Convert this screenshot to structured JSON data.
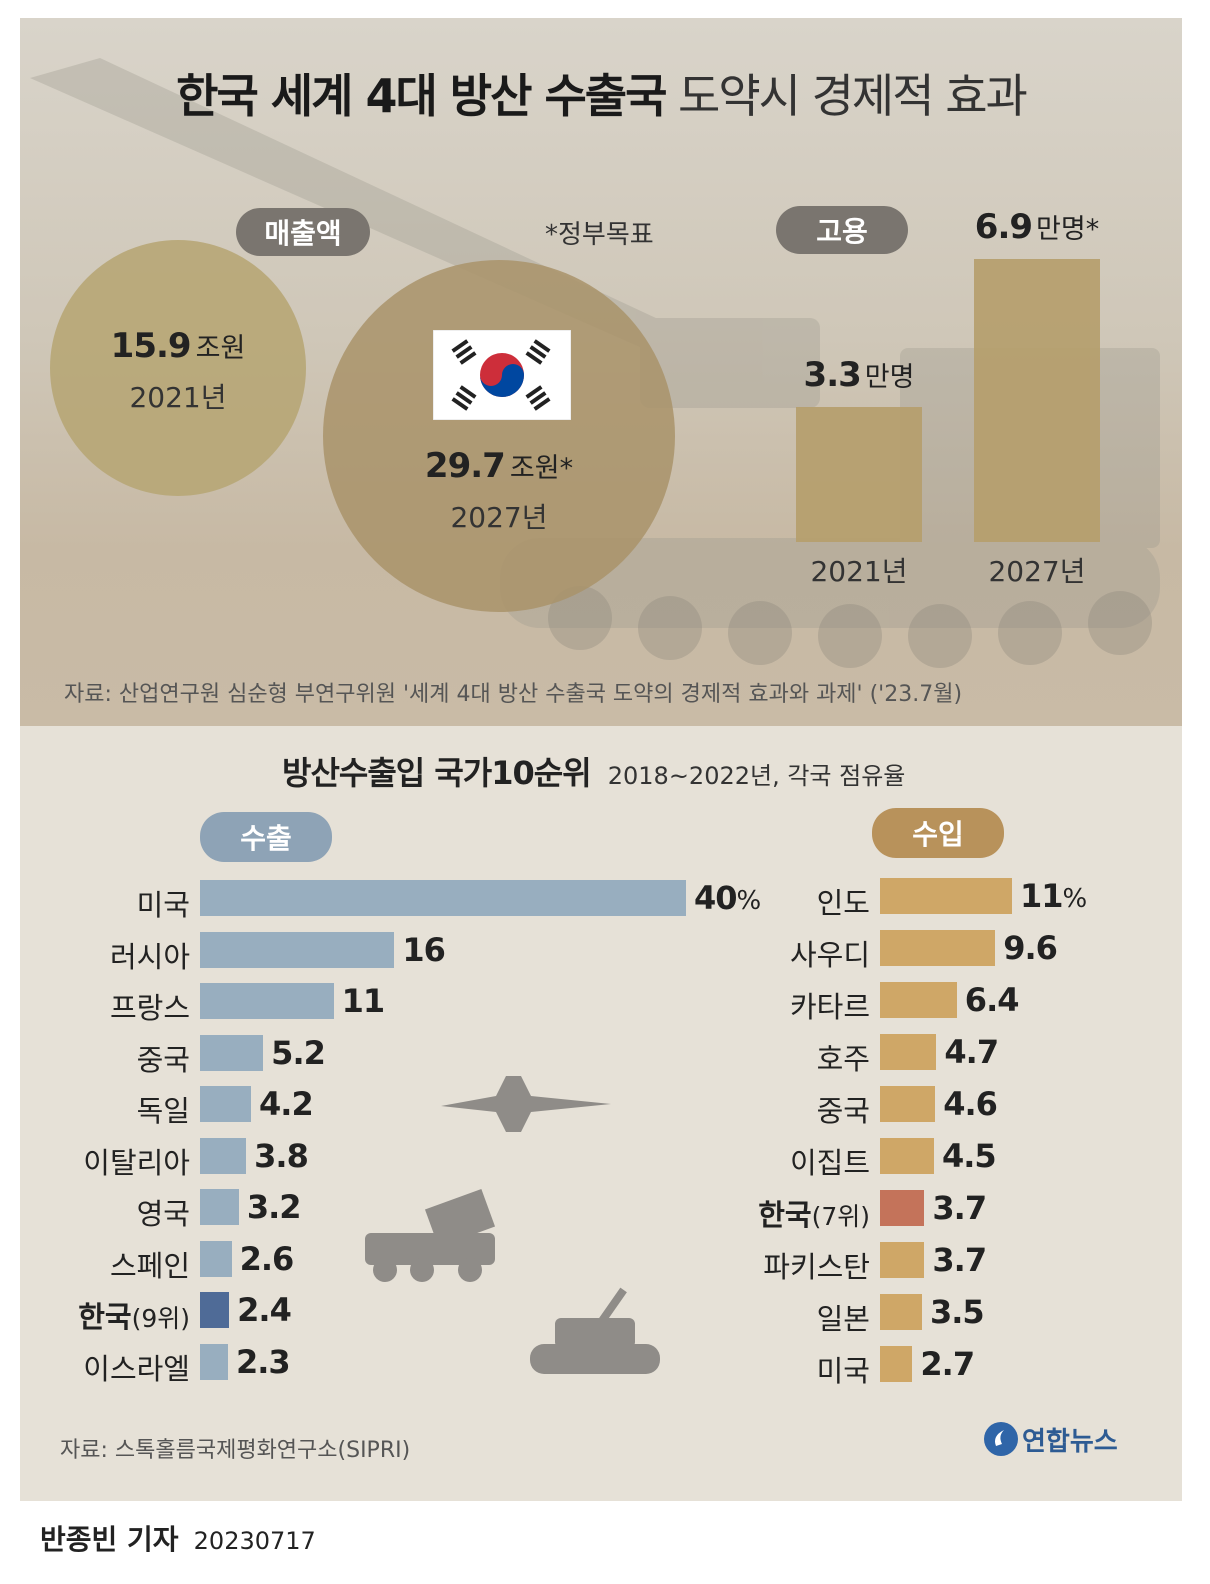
{
  "header": {
    "title_bold": "한국 세계 4대 방산 수출국",
    "title_light": "도약시 경제적 효과"
  },
  "sales": {
    "label": "매출액",
    "note": "*정부목표",
    "items": [
      {
        "amount": "15.9",
        "unit": "조원",
        "year": "2021년"
      },
      {
        "amount": "29.7",
        "unit": "조원*",
        "year": "2027년"
      }
    ]
  },
  "employment": {
    "label": "고용",
    "items": [
      {
        "value": 3.3,
        "amount": "3.3",
        "unit": "만명",
        "year": "2021년"
      },
      {
        "value": 6.9,
        "amount": "6.9",
        "unit": "만명*",
        "year": "2027년"
      }
    ]
  },
  "source_top": "자료: 산업연구원 심순형 부연구위원 '세계 4대 방산 수출국 도약의 경제적 효과와 과제' ('23.7월)",
  "ranking": {
    "title": "방산수출입 국가10순위",
    "subtitle": "2018~2022년, 각국 점유율",
    "export_label": "수출",
    "import_label": "수입"
  },
  "chart_data": [
    {
      "type": "bar",
      "title": "수출",
      "categories": [
        "미국",
        "러시아",
        "프랑스",
        "중국",
        "독일",
        "이탈리아",
        "영국",
        "스페인",
        "한국",
        "이스라엘"
      ],
      "category_suffix": [
        "",
        "",
        "",
        "",
        "",
        "",
        "",
        "",
        "(9위)",
        ""
      ],
      "values": [
        40,
        16,
        11,
        5.2,
        4.2,
        3.8,
        3.2,
        2.6,
        2.4,
        2.3
      ],
      "value_labels": [
        "40%",
        "16",
        "11",
        "5.2",
        "4.2",
        "3.8",
        "3.2",
        "2.6",
        "2.4",
        "2.3"
      ],
      "highlight_index": 8,
      "colors": {
        "bar": "#98aebf",
        "highlight": "#4f6b97"
      }
    },
    {
      "type": "bar",
      "title": "수입",
      "categories": [
        "인도",
        "사우디",
        "카타르",
        "호주",
        "중국",
        "이집트",
        "한국",
        "파키스탄",
        "일본",
        "미국"
      ],
      "category_suffix": [
        "",
        "",
        "",
        "",
        "",
        "",
        "(7위)",
        "",
        "",
        ""
      ],
      "values": [
        11,
        9.6,
        6.4,
        4.7,
        4.6,
        4.5,
        3.7,
        3.7,
        3.5,
        2.7
      ],
      "value_labels": [
        "11%",
        "9.6",
        "6.4",
        "4.7",
        "4.6",
        "4.5",
        "3.7",
        "3.7",
        "3.5",
        "2.7"
      ],
      "highlight_index": 6,
      "colors": {
        "bar": "#cfa767",
        "highlight": "#c4735a"
      }
    }
  ],
  "source_bottom": "자료: 스톡홀름국제평화연구소(SIPRI)",
  "logo_text": "연합뉴스",
  "credit": {
    "reporter": "반종빈 기자",
    "date": "20230717"
  },
  "colors": {
    "export_pill": "#8ea3b6",
    "import_pill": "#b8925b",
    "gray_pill": "#7a756f",
    "circle_small": "#b7a676",
    "circle_large": "#a9936a"
  }
}
